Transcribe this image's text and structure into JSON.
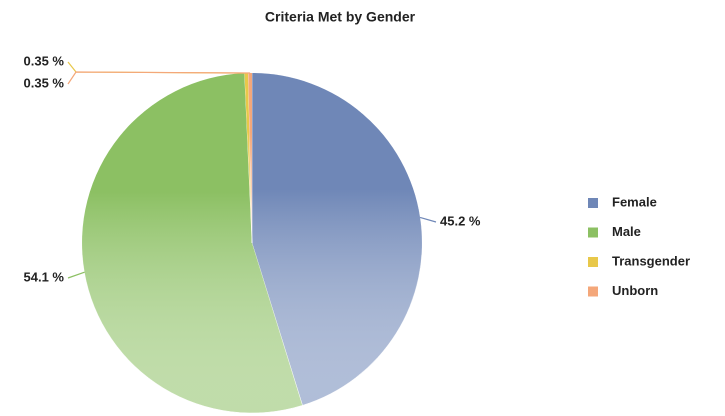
{
  "chart_data": {
    "type": "pie",
    "title": "Criteria Met by Gender",
    "categories": [
      "Female",
      "Male",
      "Transgender",
      "Unborn"
    ],
    "values": [
      45.2,
      54.1,
      0.35,
      0.35
    ],
    "value_labels": [
      "45.2 %",
      "54.1 %",
      "0.35 %",
      "0.35 %"
    ],
    "colors": [
      "#6f87b7",
      "#8cc063",
      "#e8c84a",
      "#f4a77a"
    ],
    "legend": "right"
  }
}
